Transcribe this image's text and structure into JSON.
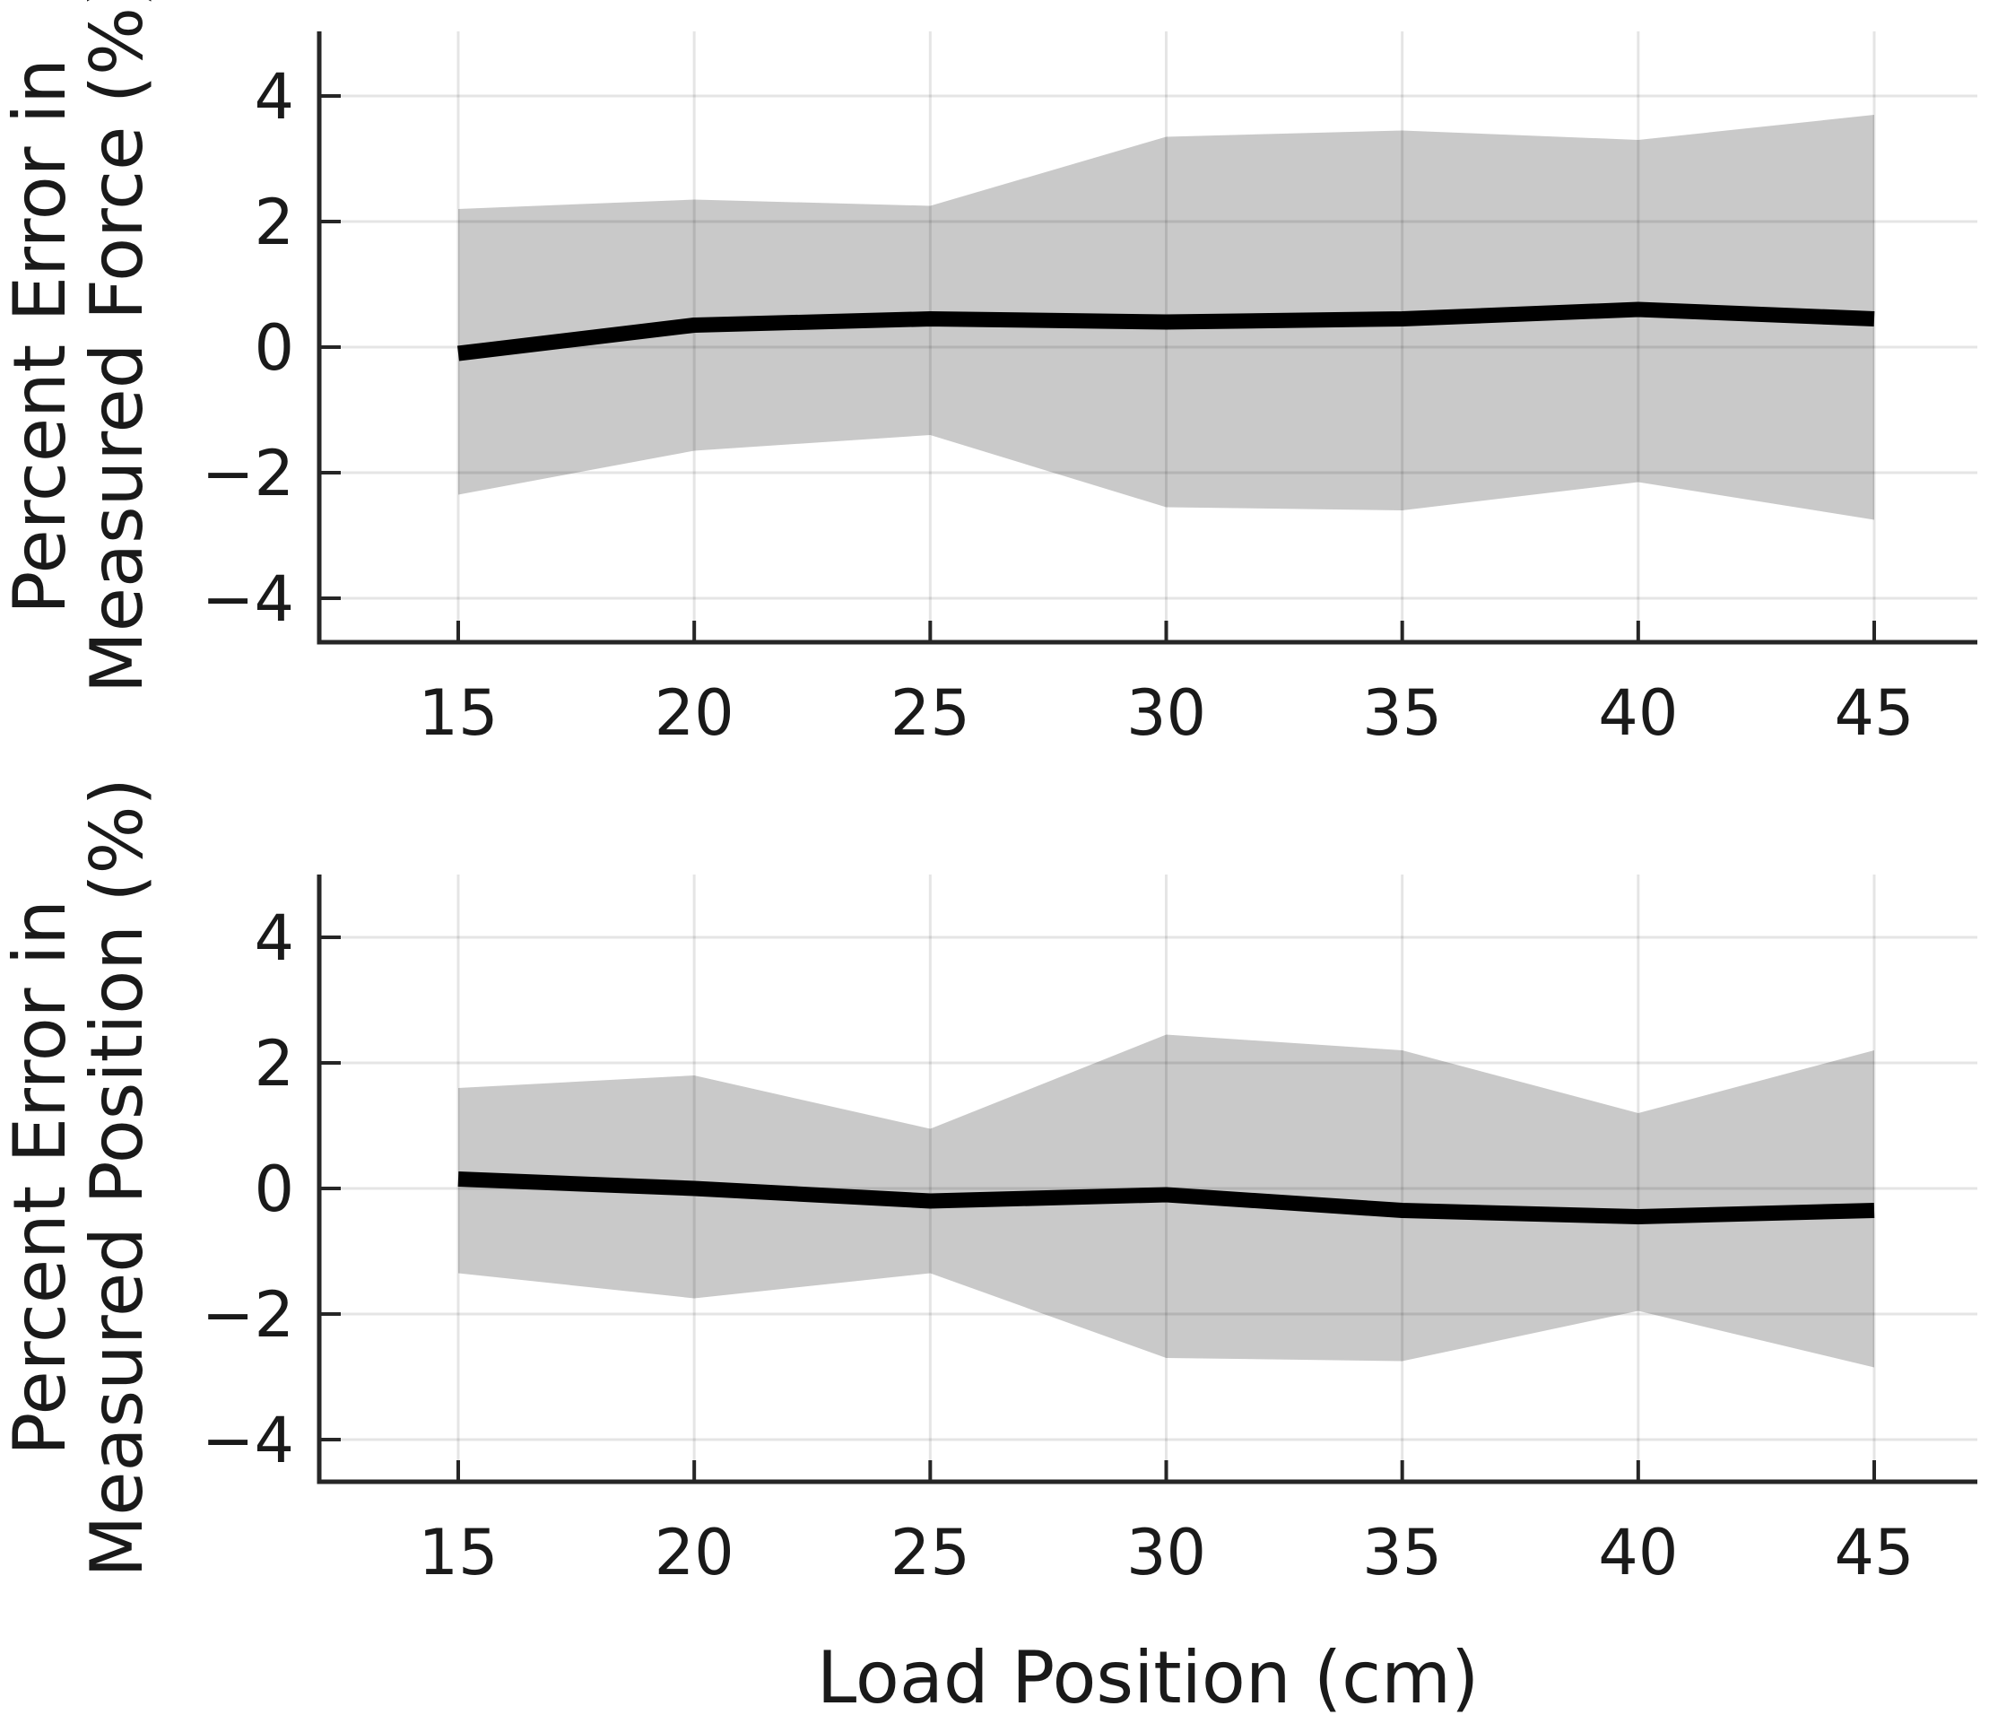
{
  "figure": {
    "xlabel": "Load Position (cm)",
    "colors": {
      "background": "#ffffff",
      "band": "#c9c9c9",
      "mean_line": "#000000",
      "grid": "#000000",
      "grid_opacity": 0.1,
      "spine": "#262626",
      "text": "#1a1a1a"
    }
  },
  "chart_data": [
    {
      "type": "line",
      "subtype": "mean-line-with-error-band",
      "title": "",
      "ylabel_lines": [
        "Percent Error in",
        "Measured Force (%)"
      ],
      "x": [
        15,
        20,
        25,
        30,
        35,
        40,
        45
      ],
      "series": [
        {
          "name": "mean percent error in measured force",
          "values": [
            -0.1,
            0.35,
            0.45,
            0.4,
            0.45,
            0.6,
            0.45
          ]
        },
        {
          "name": "error band upper bound",
          "values": [
            2.2,
            2.35,
            2.25,
            3.35,
            3.45,
            3.3,
            3.7
          ]
        },
        {
          "name": "error band lower bound",
          "values": [
            -2.35,
            -1.65,
            -1.4,
            -2.55,
            -2.6,
            -2.15,
            -2.75
          ]
        }
      ],
      "xticks": [
        {
          "value": 15,
          "label": "15"
        },
        {
          "value": 20,
          "label": "20"
        },
        {
          "value": 25,
          "label": "25"
        },
        {
          "value": 30,
          "label": "30"
        },
        {
          "value": 35,
          "label": "35"
        },
        {
          "value": 40,
          "label": "40"
        },
        {
          "value": 45,
          "label": "45"
        }
      ],
      "yticks": [
        {
          "value": 4,
          "label": "4"
        },
        {
          "value": 2,
          "label": "2"
        },
        {
          "value": 0,
          "label": "0"
        },
        {
          "value": -2,
          "label": "−2"
        },
        {
          "value": -4,
          "label": "−4"
        }
      ],
      "xlim": [
        12.1,
        47.2
      ],
      "ylim": [
        -4.7,
        5.0
      ],
      "grid": true,
      "legend": "none"
    },
    {
      "type": "line",
      "subtype": "mean-line-with-error-band",
      "title": "",
      "ylabel_lines": [
        "Percent Error in",
        "Measured Position (%)"
      ],
      "x": [
        15,
        20,
        25,
        30,
        35,
        40,
        45
      ],
      "series": [
        {
          "name": "mean percent error in measured position",
          "values": [
            0.15,
            0.0,
            -0.2,
            -0.1,
            -0.35,
            -0.45,
            -0.35
          ]
        },
        {
          "name": "error band upper bound",
          "values": [
            1.6,
            1.8,
            0.95,
            2.45,
            2.2,
            1.2,
            2.2
          ]
        },
        {
          "name": "error band lower bound",
          "values": [
            -1.35,
            -1.75,
            -1.35,
            -2.7,
            -2.75,
            -1.95,
            -2.85
          ]
        }
      ],
      "xticks": [
        {
          "value": 15,
          "label": "15"
        },
        {
          "value": 20,
          "label": "20"
        },
        {
          "value": 25,
          "label": "25"
        },
        {
          "value": 30,
          "label": "30"
        },
        {
          "value": 35,
          "label": "35"
        },
        {
          "value": 40,
          "label": "40"
        },
        {
          "value": 45,
          "label": "45"
        }
      ],
      "yticks": [
        {
          "value": 4,
          "label": "4"
        },
        {
          "value": 2,
          "label": "2"
        },
        {
          "value": 0,
          "label": "0"
        },
        {
          "value": -2,
          "label": "−2"
        },
        {
          "value": -4,
          "label": "−4"
        }
      ],
      "xlim": [
        12.1,
        47.2
      ],
      "ylim": [
        -4.7,
        5.0
      ],
      "grid": true,
      "legend": "none"
    }
  ]
}
